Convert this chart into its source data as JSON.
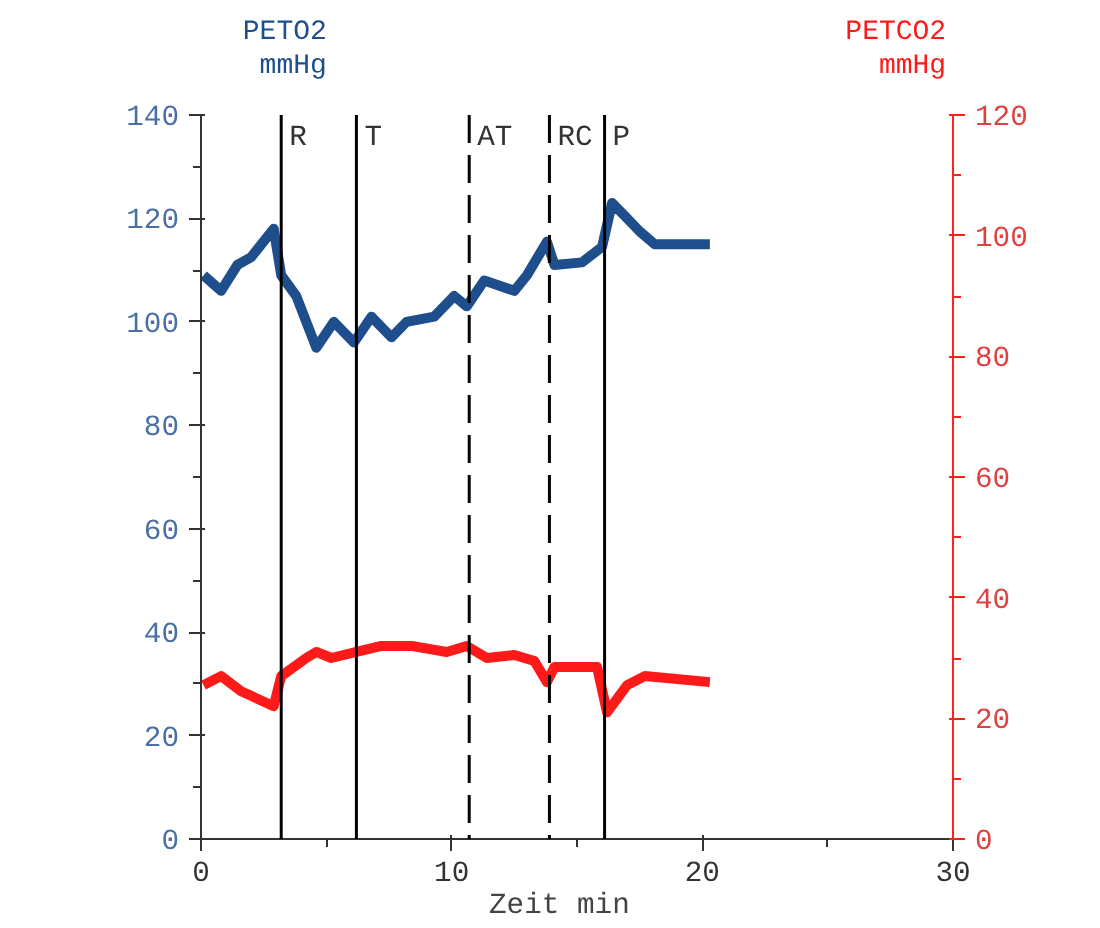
{
  "chart_data": {
    "type": "line",
    "ylabel": "mmHg",
    "y2label": "mmHg",
    "xlabel": "Zeit   min",
    "series": [
      {
        "name": "PETO2",
        "color": "#1f4e8c",
        "x": [
          0.1,
          0.8,
          1.45,
          2.0,
          2.9,
          3.2,
          3.8,
          4.6,
          5.3,
          6.1,
          6.8,
          7.6,
          8.2,
          9.3,
          10.1,
          10.6,
          11.3,
          12.5,
          13.0,
          13.8,
          14.1,
          15.2,
          16.0,
          16.4,
          16.9,
          17.5,
          18.1,
          20.3
        ],
        "values": [
          109,
          106,
          111,
          112.5,
          118,
          109,
          105,
          95,
          100,
          96,
          101,
          97,
          100,
          101,
          105,
          103,
          108,
          106,
          109,
          115.5,
          111,
          111.5,
          114.5,
          123,
          120.5,
          117.5,
          115,
          115
        ]
      },
      {
        "name": "PETCO2",
        "color": "#ff1a1a",
        "axis": "y2",
        "x": [
          0.1,
          0.8,
          1.6,
          2.9,
          3.2,
          4.2,
          4.6,
          5.2,
          6.2,
          7.2,
          8.4,
          9.8,
          10.6,
          11.4,
          12.5,
          13.3,
          13.8,
          14.1,
          15.8,
          16.2,
          17.0,
          17.7,
          20.3
        ],
        "values": [
          25.5,
          27,
          24.5,
          22,
          27,
          30,
          31,
          30,
          31,
          32,
          32,
          31,
          32,
          30,
          30.5,
          29.5,
          26,
          28.5,
          28.5,
          21,
          25.5,
          27,
          26
        ]
      }
    ],
    "xlim": [
      0,
      30
    ],
    "xticks": [
      0,
      10,
      20,
      30
    ],
    "ylim": [
      0,
      140
    ],
    "yticks": [
      0,
      20,
      40,
      60,
      80,
      100,
      120,
      140
    ],
    "y2lim": [
      0,
      120
    ],
    "y2ticks": [
      0,
      20,
      40,
      60,
      80,
      100,
      120
    ],
    "ref_lines": [
      {
        "axis": "x",
        "value": 3.2,
        "label": "R",
        "line_style": "solid"
      },
      {
        "axis": "x",
        "value": 6.2,
        "label": "T",
        "line_style": "solid"
      },
      {
        "axis": "x",
        "value": 10.7,
        "label": "AT",
        "line_style": "dashed"
      },
      {
        "axis": "x",
        "value": 13.9,
        "label": "RC",
        "line_style": "dashed"
      },
      {
        "axis": "x",
        "value": 16.1,
        "label": "P",
        "line_style": "solid"
      }
    ],
    "grid": false,
    "legend": false
  }
}
